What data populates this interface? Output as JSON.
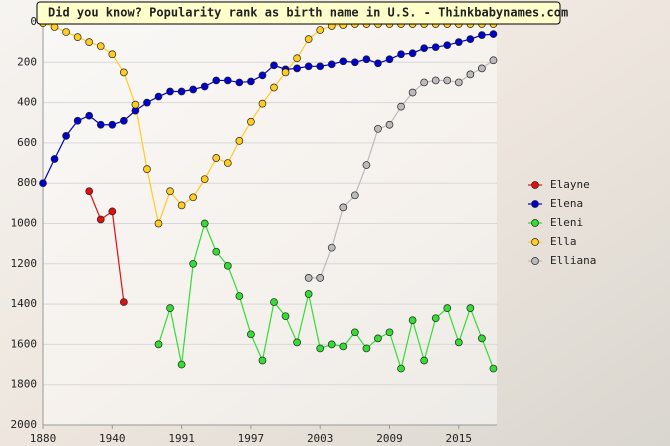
{
  "chart_data": {
    "type": "line",
    "title": "Did you know? Popularity rank as birth name in U.S. - Thinkbabynames.com",
    "categories": [
      "1880",
      null,
      null,
      null,
      null,
      null,
      "1940",
      null,
      null,
      null,
      null,
      null,
      "1991",
      null,
      null,
      null,
      null,
      null,
      "1997",
      null,
      null,
      null,
      null,
      null,
      "2003",
      null,
      null,
      null,
      null,
      null,
      "2009",
      null,
      null,
      null,
      null,
      null,
      "2015",
      null,
      null,
      null
    ],
    "series": [
      {
        "name": "Elayne",
        "color": "#e01010",
        "values": [
          null,
          null,
          null,
          null,
          840,
          980,
          940,
          1390,
          null,
          null,
          null,
          null,
          null,
          null,
          null,
          null,
          null,
          null,
          null,
          null,
          null,
          null,
          null,
          null,
          null,
          null,
          null,
          null,
          null,
          null,
          null,
          null,
          null,
          null,
          null,
          null,
          null,
          null,
          null,
          null
        ]
      },
      {
        "name": "Elena",
        "color": "#0000cc",
        "values": [
          800,
          680,
          565,
          490,
          465,
          510,
          510,
          490,
          440,
          400,
          370,
          345,
          345,
          335,
          320,
          290,
          290,
          300,
          295,
          265,
          215,
          235,
          230,
          220,
          220,
          210,
          195,
          200,
          185,
          205,
          185,
          160,
          155,
          130,
          125,
          115,
          100,
          85,
          65,
          60
        ]
      },
      {
        "name": "Eleni",
        "color": "#33dd33",
        "values": [
          null,
          null,
          null,
          null,
          null,
          null,
          null,
          null,
          null,
          null,
          1600,
          1420,
          1700,
          1200,
          1000,
          1140,
          1210,
          1360,
          1550,
          1680,
          1390,
          1460,
          1590,
          1350,
          1620,
          1600,
          1610,
          1540,
          1620,
          1570,
          1540,
          1720,
          1480,
          1680,
          1470,
          1420,
          1590,
          1420,
          1570,
          1720
        ]
      },
      {
        "name": "Ella",
        "color": "#ffcc22",
        "values": [
          5,
          25,
          50,
          75,
          100,
          120,
          160,
          250,
          410,
          730,
          1000,
          840,
          910,
          870,
          780,
          675,
          700,
          590,
          495,
          405,
          325,
          250,
          180,
          85,
          40,
          20,
          15,
          10,
          10,
          10,
          10,
          10,
          10,
          10,
          10,
          10,
          10,
          10,
          10,
          10
        ]
      },
      {
        "name": "Elliana",
        "color": "#bbbbbb",
        "values": [
          null,
          null,
          null,
          null,
          null,
          null,
          null,
          null,
          null,
          null,
          null,
          null,
          null,
          null,
          null,
          null,
          null,
          null,
          null,
          null,
          null,
          null,
          null,
          1270,
          1270,
          1120,
          920,
          860,
          710,
          530,
          510,
          420,
          350,
          300,
          290,
          290,
          300,
          260,
          230,
          190
        ]
      }
    ],
    "ylim": [
      0,
      2000
    ],
    "yticks": [
      0,
      200,
      400,
      600,
      800,
      1000,
      1200,
      1400,
      1600,
      1800,
      2000
    ],
    "y_inverted": true,
    "grid": true,
    "legend": "right"
  }
}
